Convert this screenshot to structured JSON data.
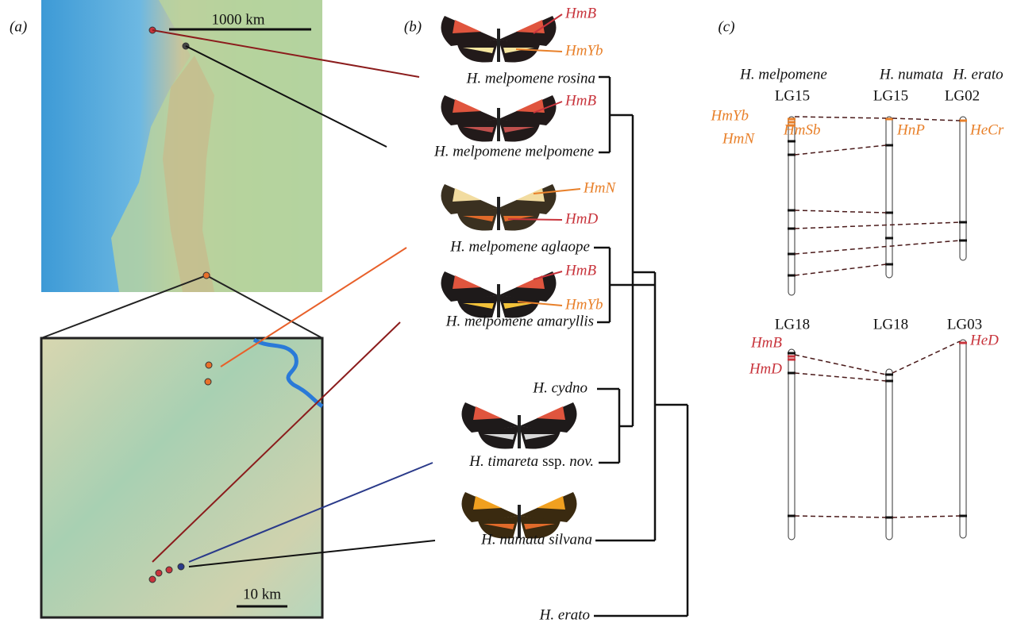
{
  "panel_a": {
    "label": "(a)",
    "scale_bar_large": "1000 km",
    "scale_bar_small": "10 km"
  },
  "panel_b": {
    "label": "(b)",
    "taxa": [
      "H. melpomene rosina",
      "H. melpomene melpomene",
      "H. melpomene aglaope",
      "H. melpomene amaryllis",
      "H. cydno",
      {
        "genus_species": "H. timareta",
        "rank": "ssp.",
        "epithet": "nov."
      },
      "H. numata silvana",
      "H. erato"
    ],
    "wing_loci": [
      "HmB",
      "HmYb",
      "HmB",
      "HmN",
      "HmD",
      "HmB",
      "HmYb"
    ]
  },
  "panel_c": {
    "label": "(c)",
    "species": [
      "H. melpomene",
      "H. numata",
      "H. erato"
    ],
    "top_linkage_groups": [
      "LG15",
      "LG15",
      "LG02"
    ],
    "top_loci": [
      "HmYb",
      "HmSb",
      "HmN",
      "HnP",
      "HeCr"
    ],
    "bottom_linkage_groups": [
      "LG18",
      "LG18",
      "LG03"
    ],
    "bottom_loci": [
      "HmB",
      "HmD",
      "HeD"
    ]
  }
}
